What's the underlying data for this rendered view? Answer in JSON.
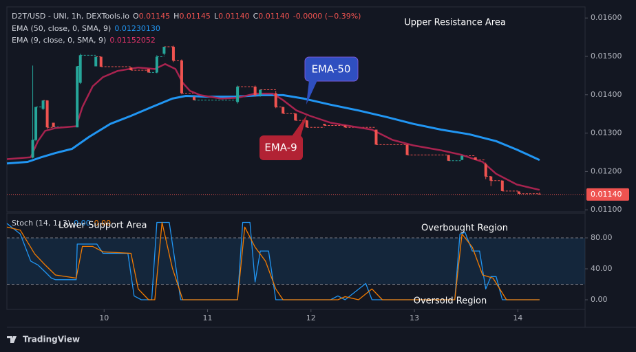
{
  "brand": "TradingView",
  "chart_data": [
    {
      "type": "candlestick",
      "symbol": "D2T/USD - UNI, 1h, DEXTools.io",
      "ohlc_header": [
        {
          "label": "O",
          "value": "0.01145"
        },
        {
          "label": "H",
          "value": "0.01145"
        },
        {
          "label": "L",
          "value": "0.01140"
        },
        {
          "label": "C",
          "value": "0.01140"
        }
      ],
      "change": "-0.0000 (−0.39%)",
      "annotations": [
        "Upper Resistance Area",
        "EMA-50",
        "EMA-9"
      ],
      "xlim": [
        9.06,
        14.65
      ],
      "xticks": [
        10,
        11,
        12,
        13,
        14
      ],
      "ylim": [
        0.01095,
        0.01629
      ],
      "yticks": [
        {
          "value": 0.011,
          "label": "0.01100"
        },
        {
          "value": 0.012,
          "label": "0.01200"
        },
        {
          "value": 0.013,
          "label": "0.01300"
        },
        {
          "value": 0.014,
          "label": "0.01400"
        },
        {
          "value": 0.015,
          "label": "0.01500"
        },
        {
          "value": 0.016,
          "label": "0.01600"
        }
      ],
      "up_color": "#26a69a",
      "down_color": "#ef5350",
      "candles": [
        {
          "x": 9.31,
          "open": 0.01236,
          "high": 0.01476,
          "low": 0.01234,
          "close": 0.01282
        },
        {
          "x": 9.34,
          "open": 0.01282,
          "high": 0.01368,
          "low": 0.01279,
          "close": 0.01368
        },
        {
          "x": 9.41,
          "open": 0.01363,
          "high": 0.01385,
          "low": 0.0136,
          "close": 0.01385
        },
        {
          "x": 9.45,
          "open": 0.01385,
          "high": 0.01385,
          "low": 0.01311,
          "close": 0.01315
        },
        {
          "x": 9.51,
          "open": 0.01327,
          "high": 0.01327,
          "low": 0.01316,
          "close": 0.01316
        },
        {
          "x": 9.74,
          "open": 0.01315,
          "high": 0.01474,
          "low": 0.01315,
          "close": 0.01474
        },
        {
          "x": 9.77,
          "open": 0.01431,
          "high": 0.01507,
          "low": 0.01428,
          "close": 0.01503
        },
        {
          "x": 9.92,
          "open": 0.01474,
          "high": 0.01499,
          "low": 0.01474,
          "close": 0.01499
        },
        {
          "x": 9.97,
          "open": 0.01499,
          "high": 0.01499,
          "low": 0.01473,
          "close": 0.01473
        },
        {
          "x": 10.26,
          "open": 0.01471,
          "high": 0.01471,
          "low": 0.01464,
          "close": 0.01464
        },
        {
          "x": 10.43,
          "open": 0.01467,
          "high": 0.01467,
          "low": 0.01458,
          "close": 0.01458
        },
        {
          "x": 10.51,
          "open": 0.01458,
          "high": 0.01503,
          "low": 0.01456,
          "close": 0.01499
        },
        {
          "x": 10.58,
          "open": 0.01507,
          "high": 0.01525,
          "low": 0.01503,
          "close": 0.01525
        },
        {
          "x": 10.67,
          "open": 0.01525,
          "high": 0.01528,
          "low": 0.01485,
          "close": 0.01489
        },
        {
          "x": 10.75,
          "open": 0.01489,
          "high": 0.01492,
          "low": 0.01401,
          "close": 0.01404
        },
        {
          "x": 10.87,
          "open": 0.01395,
          "high": 0.01395,
          "low": 0.01386,
          "close": 0.01386
        },
        {
          "x": 11.29,
          "open": 0.01381,
          "high": 0.01424,
          "low": 0.01377,
          "close": 0.01421
        },
        {
          "x": 11.46,
          "open": 0.01421,
          "high": 0.01424,
          "low": 0.01395,
          "close": 0.01399
        },
        {
          "x": 11.51,
          "open": 0.01399,
          "high": 0.01413,
          "low": 0.01395,
          "close": 0.01413
        },
        {
          "x": 11.66,
          "open": 0.01404,
          "high": 0.0141,
          "low": 0.01365,
          "close": 0.01368
        },
        {
          "x": 11.73,
          "open": 0.01368,
          "high": 0.01368,
          "low": 0.01351,
          "close": 0.01351
        },
        {
          "x": 11.85,
          "open": 0.01351,
          "high": 0.01351,
          "low": 0.01333,
          "close": 0.01333
        },
        {
          "x": 11.96,
          "open": 0.01333,
          "high": 0.01333,
          "low": 0.01315,
          "close": 0.01315
        },
        {
          "x": 12.13,
          "open": 0.01324,
          "high": 0.01324,
          "low": 0.0132,
          "close": 0.0132
        },
        {
          "x": 12.33,
          "open": 0.0132,
          "high": 0.0132,
          "low": 0.01315,
          "close": 0.01315
        },
        {
          "x": 12.63,
          "open": 0.01309,
          "high": 0.01309,
          "low": 0.0127,
          "close": 0.0127
        },
        {
          "x": 12.93,
          "open": 0.0127,
          "high": 0.0127,
          "low": 0.01243,
          "close": 0.01243
        },
        {
          "x": 13.33,
          "open": 0.01243,
          "high": 0.01243,
          "low": 0.01228,
          "close": 0.01228
        },
        {
          "x": 13.46,
          "open": 0.0123,
          "high": 0.01241,
          "low": 0.0123,
          "close": 0.01241
        },
        {
          "x": 13.59,
          "open": 0.01237,
          "high": 0.01237,
          "low": 0.0123,
          "close": 0.0123
        },
        {
          "x": 13.69,
          "open": 0.01219,
          "high": 0.01223,
          "low": 0.0118,
          "close": 0.01187
        },
        {
          "x": 13.74,
          "open": 0.01187,
          "high": 0.01187,
          "low": 0.01162,
          "close": 0.01176
        },
        {
          "x": 13.85,
          "open": 0.01176,
          "high": 0.01176,
          "low": 0.01149,
          "close": 0.01149
        },
        {
          "x": 14.01,
          "open": 0.01148,
          "high": 0.01148,
          "low": 0.01142,
          "close": 0.01142
        },
        {
          "x": 14.21,
          "open": 0.01142,
          "high": 0.01145,
          "low": 0.0114,
          "close": 0.0114
        }
      ],
      "series": [
        {
          "name": "EMA (50, close, 0, SMA, 9)",
          "value_label": "0.01230130",
          "color": "#2196f3",
          "width": 3,
          "x": [
            9.06,
            9.26,
            9.39,
            9.53,
            9.69,
            9.86,
            10.06,
            10.26,
            10.46,
            10.66,
            10.79,
            10.99,
            11.26,
            11.53,
            11.73,
            11.93,
            12.19,
            12.46,
            12.73,
            12.99,
            13.26,
            13.53,
            13.79,
            13.99,
            14.21
          ],
          "values": [
            0.01221,
            0.01225,
            0.01237,
            0.01248,
            0.01259,
            0.01291,
            0.01324,
            0.01345,
            0.01368,
            0.0139,
            0.01397,
            0.01395,
            0.01395,
            0.01399,
            0.01399,
            0.0139,
            0.01374,
            0.01359,
            0.01342,
            0.01324,
            0.01309,
            0.01297,
            0.01279,
            0.01257,
            0.0123
          ]
        },
        {
          "name": "EMA (9, close, 0, SMA, 9)",
          "value_label": "0.01152052",
          "color": "#a8234f",
          "width": 2.5,
          "x": [
            9.06,
            9.29,
            9.36,
            9.43,
            9.53,
            9.73,
            9.79,
            9.89,
            9.99,
            10.13,
            10.33,
            10.49,
            10.59,
            10.69,
            10.76,
            10.83,
            10.93,
            11.13,
            11.29,
            11.46,
            11.63,
            11.73,
            11.86,
            11.99,
            12.19,
            12.39,
            12.59,
            12.79,
            12.99,
            13.26,
            13.46,
            13.66,
            13.79,
            13.99,
            14.21
          ],
          "values": [
            0.01232,
            0.01237,
            0.01279,
            0.01306,
            0.01313,
            0.01318,
            0.01368,
            0.01422,
            0.01446,
            0.01462,
            0.01471,
            0.01467,
            0.0148,
            0.01467,
            0.01431,
            0.0141,
            0.01399,
            0.0139,
            0.01392,
            0.01403,
            0.01403,
            0.01386,
            0.01359,
            0.01345,
            0.01327,
            0.01318,
            0.01309,
            0.01282,
            0.01268,
            0.01255,
            0.01243,
            0.01225,
            0.01194,
            0.01166,
            0.01152
          ]
        }
      ],
      "last_price": {
        "value": 0.0114,
        "label": "0.01140"
      }
    },
    {
      "type": "line",
      "title": "Stoch (14, 1, 3)",
      "annotations": [
        "Lower Support Area",
        "Overbought Region",
        "Oversold Region"
      ],
      "xlim": [
        9.06,
        14.65
      ],
      "ylim": [
        -12.4,
        112
      ],
      "yticks": [
        {
          "value": 0,
          "label": "0.00"
        },
        {
          "value": 40,
          "label": "40.00"
        },
        {
          "value": 80,
          "label": "80.00"
        }
      ],
      "bands": [
        20,
        80
      ],
      "series": [
        {
          "name": "%K",
          "value_label": "0.00",
          "color": "#2196f3",
          "x": [
            9.06,
            9.19,
            9.29,
            9.36,
            9.43,
            9.49,
            9.53,
            9.73,
            9.74,
            9.93,
            9.99,
            10.23,
            10.29,
            10.36,
            10.46,
            10.51,
            10.63,
            10.74,
            11.29,
            11.34,
            11.41,
            11.46,
            11.51,
            11.59,
            11.66,
            12.19,
            12.26,
            12.33,
            12.53,
            12.59,
            13.39,
            13.44,
            13.49,
            13.56,
            13.63,
            13.69,
            13.74,
            13.79,
            13.85,
            14.21
          ],
          "values": [
            98.7,
            85,
            50,
            45,
            36,
            28,
            26,
            26,
            72,
            72,
            60,
            60,
            5,
            0,
            0,
            100,
            100,
            0,
            0,
            100,
            100,
            23,
            63,
            63,
            0,
            0,
            5,
            0,
            21,
            0,
            0,
            85,
            87,
            63,
            63,
            14,
            30,
            30,
            0,
            0
          ]
        },
        {
          "name": "%D",
          "value_label": "0.00",
          "color": "#f57c00",
          "x": [
            9.06,
            9.19,
            9.33,
            9.43,
            9.53,
            9.73,
            9.79,
            9.89,
            9.99,
            10.26,
            10.33,
            10.43,
            10.49,
            10.56,
            10.66,
            10.76,
            11.29,
            11.36,
            11.46,
            11.56,
            11.66,
            11.73,
            12.26,
            12.33,
            12.46,
            12.59,
            12.69,
            13.39,
            13.46,
            13.56,
            13.66,
            13.76,
            13.89,
            14.21
          ],
          "values": [
            94,
            90,
            59,
            45,
            32,
            28,
            69,
            69,
            62,
            60,
            14,
            0,
            0,
            100,
            41,
            0,
            0,
            94,
            68,
            50,
            14,
            0,
            0,
            4,
            0,
            14,
            0,
            0,
            85,
            68,
            32,
            28,
            0,
            0
          ]
        }
      ]
    }
  ]
}
